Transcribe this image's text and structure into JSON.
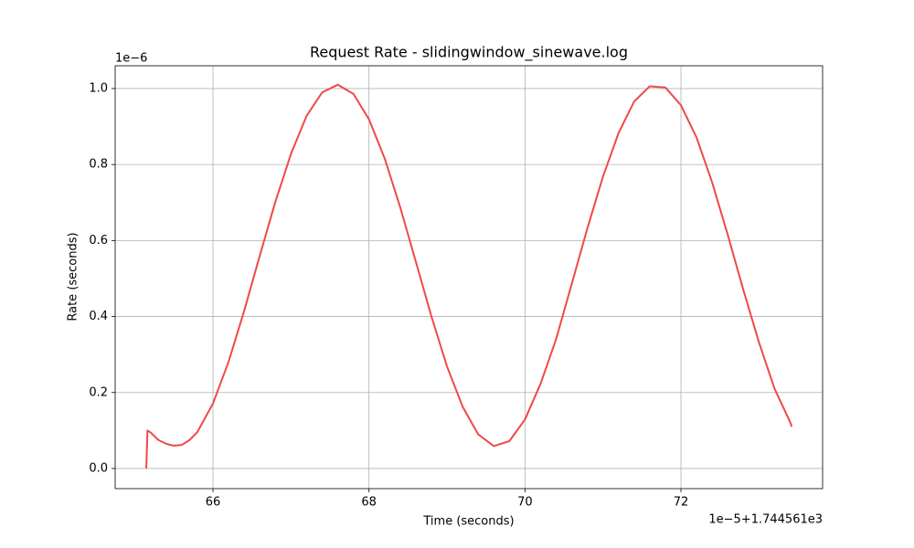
{
  "chart_data": {
    "type": "line",
    "title": "Request Rate - slidingwindow_sinewave.log",
    "x_label": "Time (seconds)",
    "y_label": "Rate (seconds)",
    "x_offset_label": "1e−5+1.744561e3",
    "y_offset_label": "1e−6",
    "x": [
      65.145,
      65.16,
      65.2,
      65.3,
      65.4,
      65.5,
      65.6,
      65.7,
      65.8,
      66.0,
      66.2,
      66.4,
      66.6,
      66.8,
      67.0,
      67.2,
      67.4,
      67.6,
      67.8,
      68.0,
      68.2,
      68.4,
      68.6,
      68.8,
      69.0,
      69.2,
      69.4,
      69.6,
      69.8,
      70.0,
      70.2,
      70.4,
      70.6,
      70.8,
      71.0,
      71.2,
      71.4,
      71.6,
      71.8,
      72.0,
      72.2,
      72.4,
      72.6,
      72.8,
      73.0,
      73.2,
      73.4,
      73.42
    ],
    "series": [
      {
        "name": "Request Rate",
        "color": "#f04848",
        "values": [
          0,
          0.1,
          0.095,
          0.075,
          0.065,
          0.06,
          0.062,
          0.075,
          0.096,
          0.171,
          0.281,
          0.415,
          0.56,
          0.702,
          0.828,
          0.928,
          0.99,
          1.01,
          0.986,
          0.919,
          0.817,
          0.688,
          0.545,
          0.401,
          0.269,
          0.163,
          0.09,
          0.059,
          0.072,
          0.129,
          0.223,
          0.341,
          0.486,
          0.632,
          0.768,
          0.883,
          0.966,
          1.006,
          1.003,
          0.956,
          0.871,
          0.753,
          0.615,
          0.47,
          0.332,
          0.21,
          0.122,
          0.11
        ]
      }
    ],
    "xlim": [
      64.746,
      73.816
    ],
    "ylim": [
      -0.053,
      1.06
    ],
    "xticks": [
      66,
      68,
      70,
      72
    ],
    "yticks": [
      {
        "value": 0,
        "label": "0.0"
      },
      0.2,
      0.4,
      0.6,
      0.8,
      {
        "value": 1,
        "label": "1.0"
      }
    ],
    "grid": true
  }
}
